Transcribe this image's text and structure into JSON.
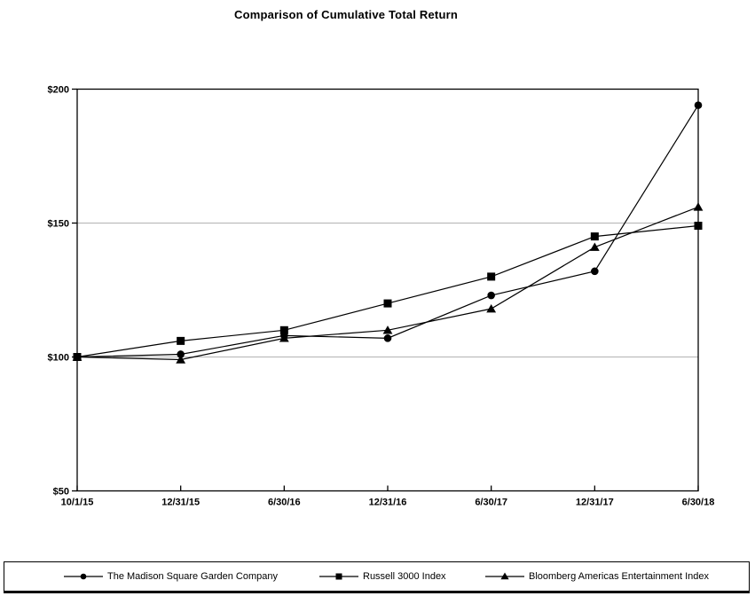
{
  "title": "Comparison of Cumulative Total Return",
  "colors": {
    "line": "#000000",
    "grid": "#b3b3b3",
    "axis": "#000000",
    "background": "#ffffff"
  },
  "chart_data": {
    "type": "line",
    "title": "Comparison of Cumulative Total Return",
    "xlabel": "",
    "ylabel": "",
    "categories": [
      "10/1/15",
      "12/31/15",
      "6/30/16",
      "12/31/16",
      "6/30/17",
      "12/31/17",
      "6/30/18"
    ],
    "y_ticks": [
      50,
      100,
      150,
      200
    ],
    "y_tick_labels": [
      "$50",
      "$100",
      "$150",
      "$200"
    ],
    "ylim": [
      50,
      200
    ],
    "grid_values": [
      100,
      150
    ],
    "grid": "horizontal-only",
    "legend_position": "bottom",
    "series": [
      {
        "name": "The Madison Square Garden Company",
        "marker": "circle",
        "values": [
          100,
          101,
          108,
          107,
          123,
          132,
          194
        ]
      },
      {
        "name": "Russell 3000 Index",
        "marker": "square",
        "values": [
          100,
          106,
          110,
          120,
          130,
          145,
          149
        ]
      },
      {
        "name": "Bloomberg Americas Entertainment Index",
        "marker": "triangle",
        "values": [
          100,
          99,
          107,
          110,
          118,
          141,
          156
        ]
      }
    ]
  }
}
